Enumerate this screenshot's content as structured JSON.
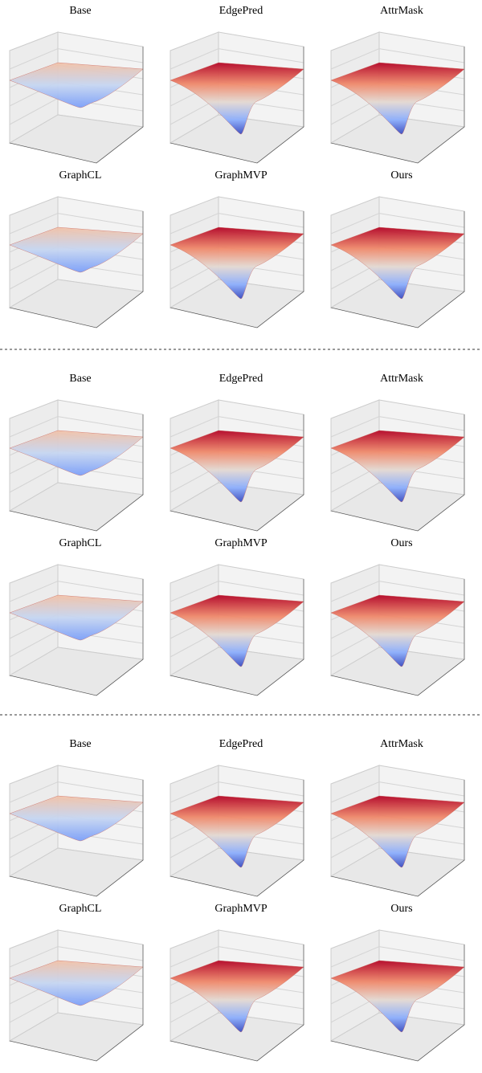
{
  "groups": [
    {
      "panels": [
        {
          "title": "Base"
        },
        {
          "title": "EdgePred"
        },
        {
          "title": "AttrMask"
        },
        {
          "title": "GraphCL"
        },
        {
          "title": "GraphMVP"
        },
        {
          "title": "Ours"
        }
      ]
    },
    {
      "panels": [
        {
          "title": "Base"
        },
        {
          "title": "EdgePred"
        },
        {
          "title": "AttrMask"
        },
        {
          "title": "GraphCL"
        },
        {
          "title": "GraphMVP"
        },
        {
          "title": "Ours"
        }
      ]
    },
    {
      "panels": [
        {
          "title": "Base"
        },
        {
          "title": "EdgePred"
        },
        {
          "title": "AttrMask"
        },
        {
          "title": "GraphCL"
        },
        {
          "title": "GraphMVP"
        },
        {
          "title": "Ours"
        }
      ]
    }
  ]
}
